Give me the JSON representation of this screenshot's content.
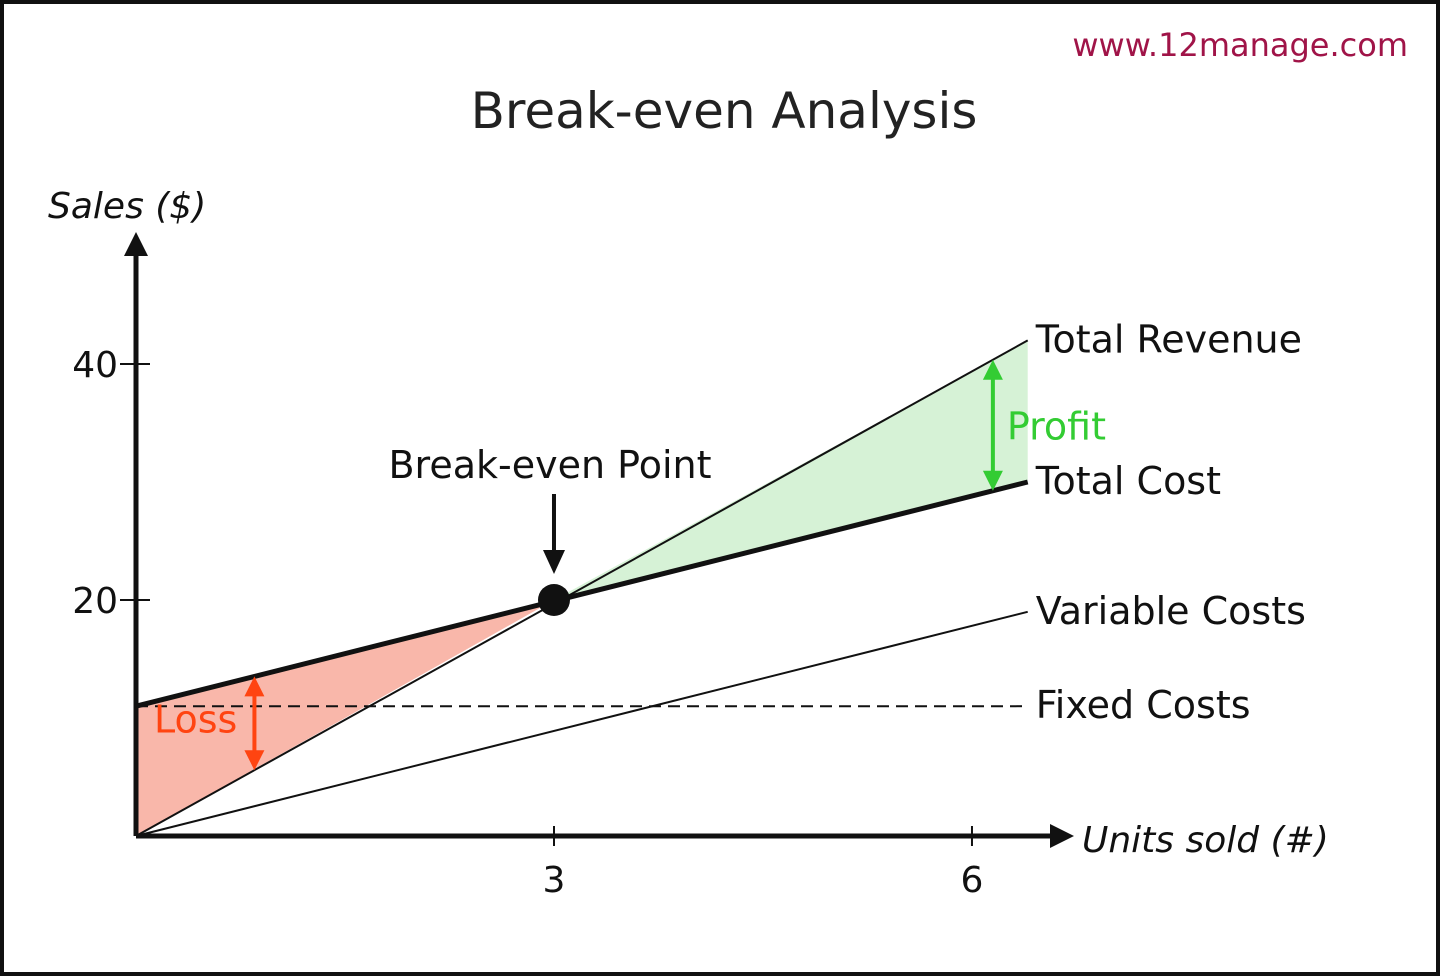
{
  "watermark": "www.12manage.com",
  "colors": {
    "profit": "#33cc33",
    "profit_fill": "#d6f2d6",
    "loss": "#ff4411",
    "loss_fill": "#f9b7aa",
    "watermark": "#a01448",
    "line": "#111111"
  },
  "chart_data": {
    "type": "line",
    "title": "Break-even Analysis",
    "xlabel": "Units sold (#)",
    "ylabel": "Sales ($)",
    "xlim": [
      0,
      6.4
    ],
    "ylim": [
      0,
      50
    ],
    "xticks": [
      3,
      6
    ],
    "yticks": [
      20,
      40
    ],
    "grid": false,
    "series": [
      {
        "name": "Total Revenue",
        "style": "thin",
        "x": [
          0,
          6.4
        ],
        "y": [
          0,
          42
        ]
      },
      {
        "name": "Total Cost",
        "style": "thick",
        "x": [
          0,
          6.4
        ],
        "y": [
          11,
          30
        ]
      },
      {
        "name": "Variable Costs",
        "style": "thin",
        "x": [
          0,
          6.4
        ],
        "y": [
          0,
          19
        ]
      },
      {
        "name": "Fixed Costs",
        "style": "dashed",
        "x": [
          0,
          6.4
        ],
        "y": [
          11,
          11
        ]
      }
    ],
    "break_even": {
      "label": "Break-even Point",
      "x": 3,
      "y": 20
    },
    "regions": {
      "loss": {
        "label": "Loss",
        "x": 0.85
      },
      "profit": {
        "label": "Profit",
        "x": 6.15
      }
    }
  }
}
